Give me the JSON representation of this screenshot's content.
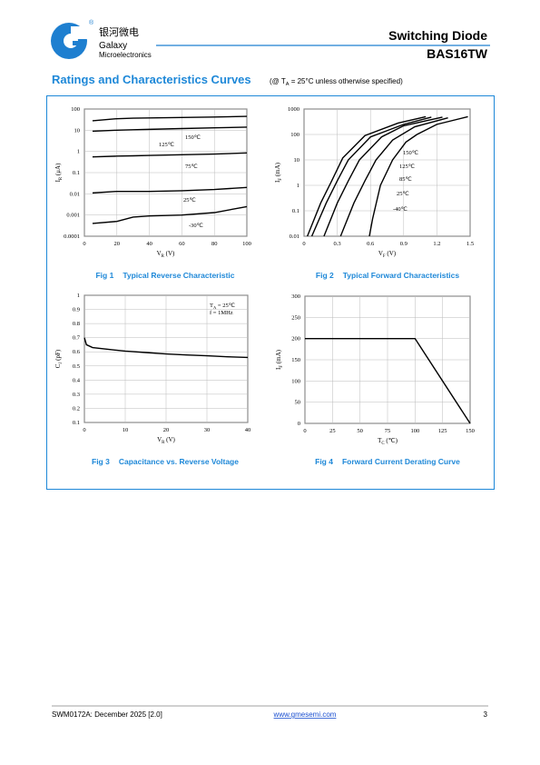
{
  "header": {
    "company_cn": "银河微电",
    "registered": "®",
    "company_en_1": "Galaxy",
    "company_en_2": "Microelectronics",
    "title": "Switching Diode",
    "part": "BAS16TW"
  },
  "section": {
    "title": "Ratings and Characteristics Curves",
    "note": {
      "text": "(@ T",
      "sub": "A",
      "rest": " = 25°C unless otherwise specified)"
    }
  },
  "chart_data": [
    {
      "type": "line",
      "figure": "Fig 1",
      "title": "Typical Reverse Characteristic",
      "log_y": true,
      "grid": true,
      "x_label": {
        "text": "V",
        "sub": "R",
        "rest": " (V)"
      },
      "y_label": {
        "text": "I",
        "sub": "R",
        "rest": " (μA)"
      },
      "xlim": [
        0,
        100
      ],
      "ylim": [
        0.0001,
        100
      ],
      "xticks": [
        0,
        20,
        40,
        60,
        80,
        100
      ],
      "yticks": [
        0.0001,
        0.001,
        0.01,
        0.1,
        1,
        10,
        100
      ],
      "x": [
        5,
        20,
        30,
        40,
        60,
        80,
        100
      ],
      "series": [
        {
          "name": "150℃",
          "color": "#000000",
          "values": [
            28,
            35,
            37,
            38,
            40,
            42,
            45
          ]
        },
        {
          "name": "125℃",
          "color": "#000000",
          "values": [
            9,
            10,
            10.5,
            11,
            12,
            13,
            14
          ]
        },
        {
          "name": "75℃",
          "color": "#000000",
          "values": [
            0.55,
            0.6,
            0.62,
            0.65,
            0.7,
            0.75,
            0.85
          ]
        },
        {
          "name": "25℃",
          "color": "#000000",
          "values": [
            0.011,
            0.013,
            0.013,
            0.013,
            0.014,
            0.016,
            0.02
          ]
        },
        {
          "name": "-30℃",
          "color": "#000000",
          "values": [
            0.0004,
            0.0005,
            0.0008,
            0.0009,
            0.001,
            0.0013,
            0.0025
          ]
        }
      ]
    },
    {
      "type": "line",
      "figure": "Fig 2",
      "title": "Typical Forward Characteristics",
      "log_y": true,
      "grid": true,
      "x_label": {
        "text": "V",
        "sub": "F",
        "rest": " (V)"
      },
      "y_label": {
        "text": "I",
        "sub": "F",
        "rest": " (mA)"
      },
      "xlim": [
        0,
        1.5
      ],
      "ylim": [
        0.01,
        1000
      ],
      "xticks": [
        0,
        0.3,
        0.6,
        0.9,
        1.2,
        1.5
      ],
      "yticks": [
        0.01,
        0.1,
        1,
        10,
        100,
        1000
      ],
      "series": [
        {
          "name": "150℃",
          "color": "#000000",
          "x": [
            0.03,
            0.15,
            0.25,
            0.35,
            0.55,
            0.85,
            1.1
          ],
          "values": [
            0.01,
            0.2,
            1.5,
            12,
            90,
            280,
            500
          ]
        },
        {
          "name": "125℃",
          "color": "#000000",
          "x": [
            0.07,
            0.2,
            0.3,
            0.4,
            0.6,
            0.9,
            1.15
          ],
          "values": [
            0.01,
            0.2,
            1.5,
            10,
            80,
            250,
            480
          ]
        },
        {
          "name": "85℃",
          "color": "#000000",
          "x": [
            0.18,
            0.3,
            0.4,
            0.5,
            0.7,
            0.9,
            1.25
          ],
          "values": [
            0.01,
            0.2,
            1.5,
            10,
            80,
            220,
            480
          ]
        },
        {
          "name": "25℃",
          "color": "#000000",
          "x": [
            0.33,
            0.45,
            0.55,
            0.65,
            0.8,
            1.0,
            1.3
          ],
          "values": [
            0.01,
            0.2,
            1.5,
            10,
            60,
            200,
            450
          ]
        },
        {
          "name": "-40℃",
          "color": "#000000",
          "x": [
            0.59,
            0.62,
            0.69,
            0.8,
            0.92,
            1.02,
            1.2,
            1.48
          ],
          "values": [
            0.01,
            0.05,
            1,
            10,
            50,
            100,
            250,
            500
          ]
        }
      ]
    },
    {
      "type": "line",
      "figure": "Fig 3",
      "title": "Capacitance vs. Reverse Voltage",
      "log_y": false,
      "grid": true,
      "x_label": {
        "text": "V",
        "sub": "R",
        "rest": " (V)"
      },
      "y_label": {
        "text": "C",
        "sub": "J",
        "rest": " (pF)"
      },
      "annotations": [
        {
          "text": "T",
          "sub": "A",
          "rest": " = 25℃"
        },
        {
          "text": "f = 1MHz"
        }
      ],
      "xlim": [
        0,
        40
      ],
      "ylim": [
        0.1,
        1
      ],
      "xticks": [
        0,
        10,
        20,
        30,
        40
      ],
      "yticks": [
        0.1,
        0.2,
        0.3,
        0.4,
        0.5,
        0.6,
        0.7,
        0.8,
        0.9,
        1
      ],
      "x": [
        0,
        0.5,
        2,
        5,
        10,
        15,
        20,
        25,
        30,
        35,
        40
      ],
      "series": [
        {
          "color": "#000000",
          "values": [
            0.7,
            0.65,
            0.63,
            0.62,
            0.605,
            0.595,
            0.585,
            0.578,
            0.572,
            0.565,
            0.56
          ]
        }
      ]
    },
    {
      "type": "line",
      "figure": "Fig 4",
      "title": "Forward Current Derating Curve",
      "log_y": false,
      "grid": true,
      "x_label": {
        "text": "T",
        "sub": "C",
        "rest": " (℃)"
      },
      "y_label": {
        "text": "I",
        "sub": "F",
        "rest": " (mA)"
      },
      "xlim": [
        0,
        150
      ],
      "ylim": [
        0,
        300
      ],
      "xticks": [
        0,
        25,
        50,
        75,
        100,
        125,
        150
      ],
      "yticks": [
        0,
        50,
        100,
        150,
        200,
        250,
        300
      ],
      "x": [
        0,
        100,
        150
      ],
      "series": [
        {
          "color": "#000000",
          "values": [
            200,
            200,
            0
          ]
        }
      ]
    }
  ],
  "footer": {
    "doc": "SWM0172A: December 2025 [2.0]",
    "url": "www.gmesemi.com",
    "page": "3"
  }
}
